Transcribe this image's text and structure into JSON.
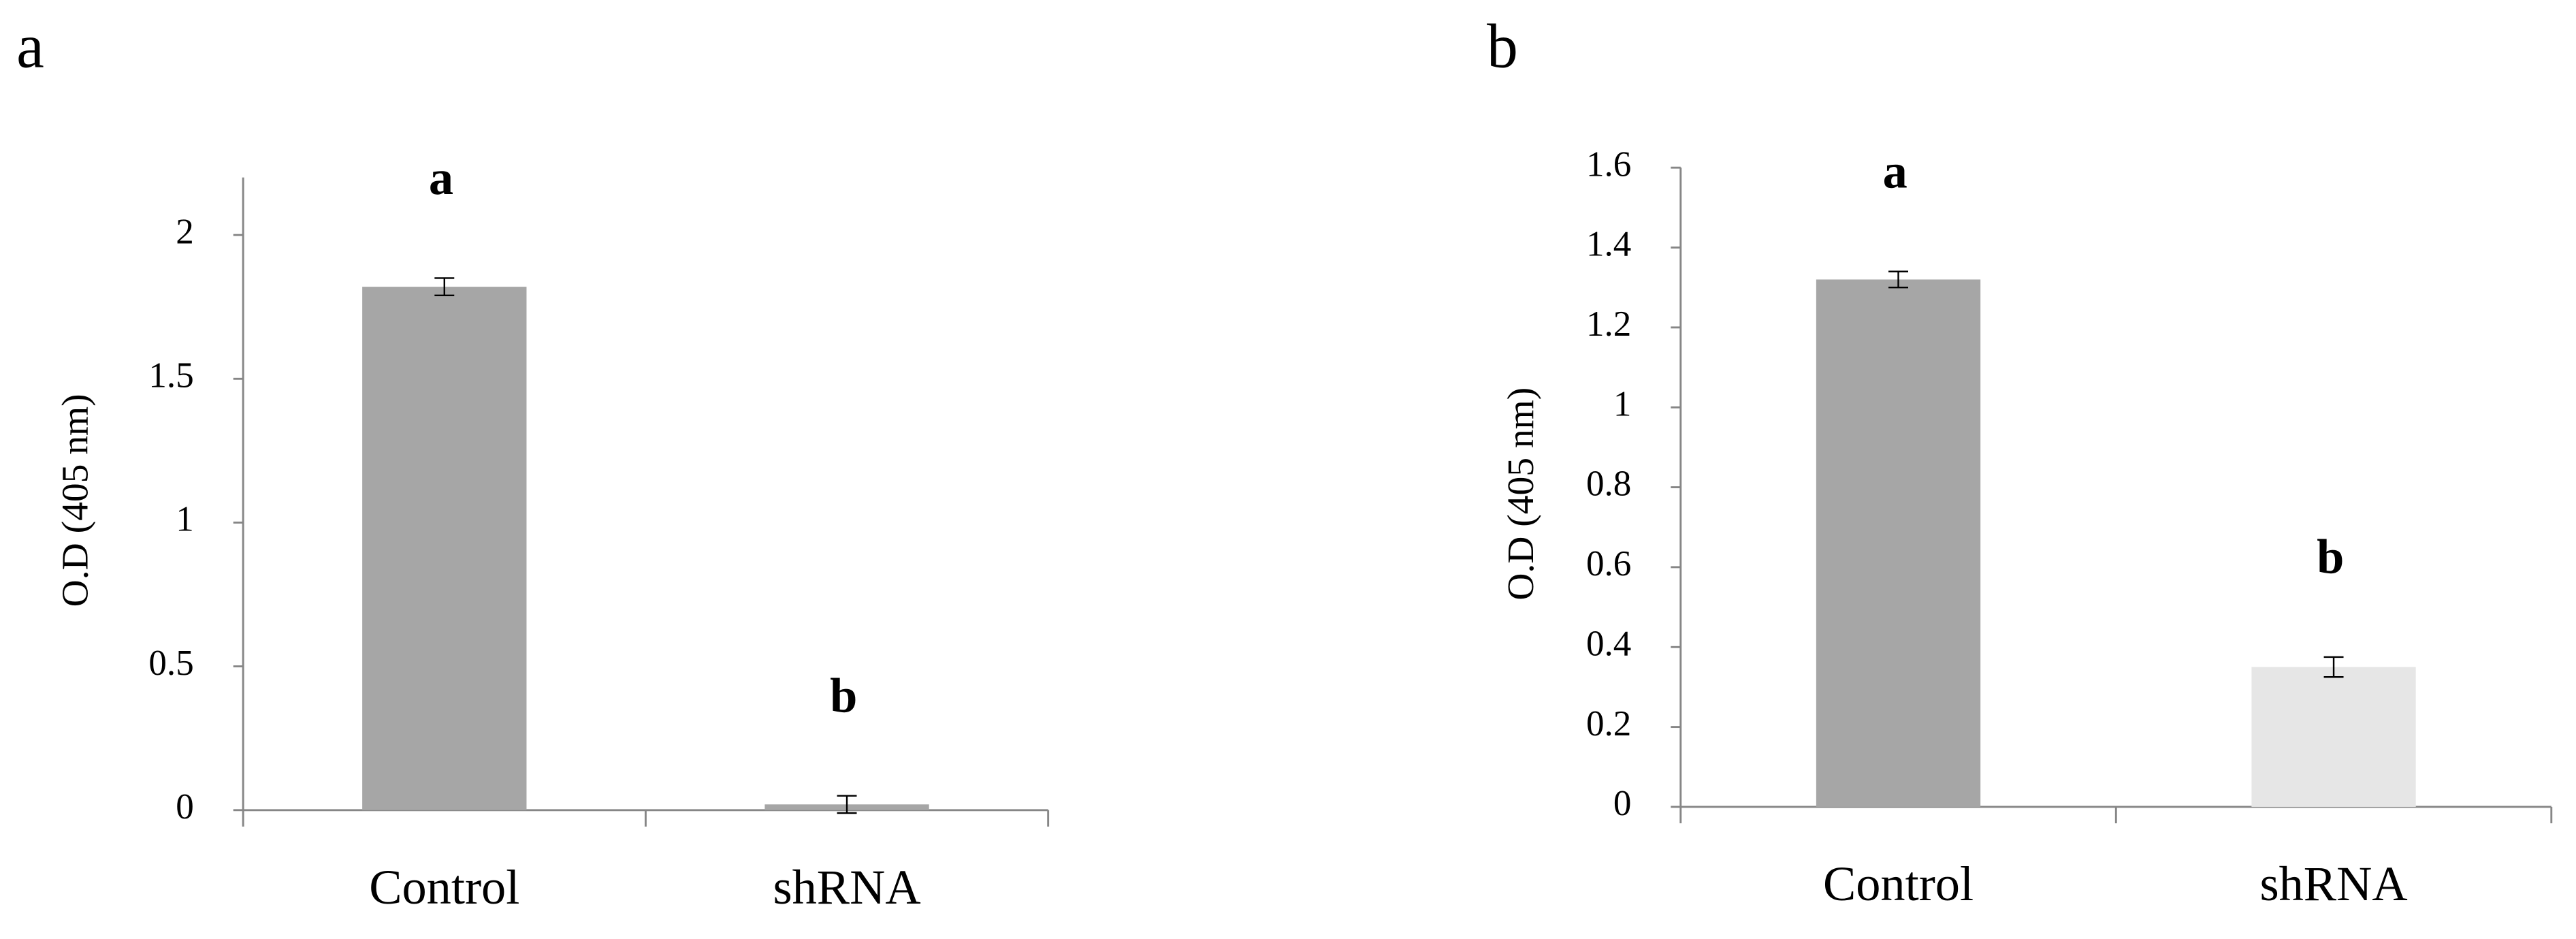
{
  "chart_data": [
    {
      "type": "bar",
      "title": "a",
      "y_label": "O.D (405 nm)",
      "categories": [
        "Control",
        "shRNA"
      ],
      "values": [
        1.82,
        0.02
      ],
      "errors": [
        0.03,
        0.03
      ],
      "colors": [
        "#a6a6a6",
        "#a6a6a6"
      ],
      "annotations": [
        "a",
        "b"
      ],
      "ylim": [
        0,
        2.2
      ],
      "yticks": [
        0,
        0.5,
        1,
        1.5,
        2
      ]
    },
    {
      "type": "bar",
      "title": "b",
      "y_label": "O.D (405 nm)",
      "categories": [
        "Control",
        "shRNA"
      ],
      "values": [
        1.32,
        0.35
      ],
      "errors": [
        0.02,
        0.025
      ],
      "colors": [
        "#a6a6a6",
        "#e6e6e6"
      ],
      "annotations": [
        "a",
        "b"
      ],
      "ylim": [
        0,
        1.6
      ],
      "yticks": [
        0,
        0.2,
        0.4,
        0.6,
        0.8,
        1,
        1.2,
        1.4,
        1.6
      ]
    }
  ]
}
